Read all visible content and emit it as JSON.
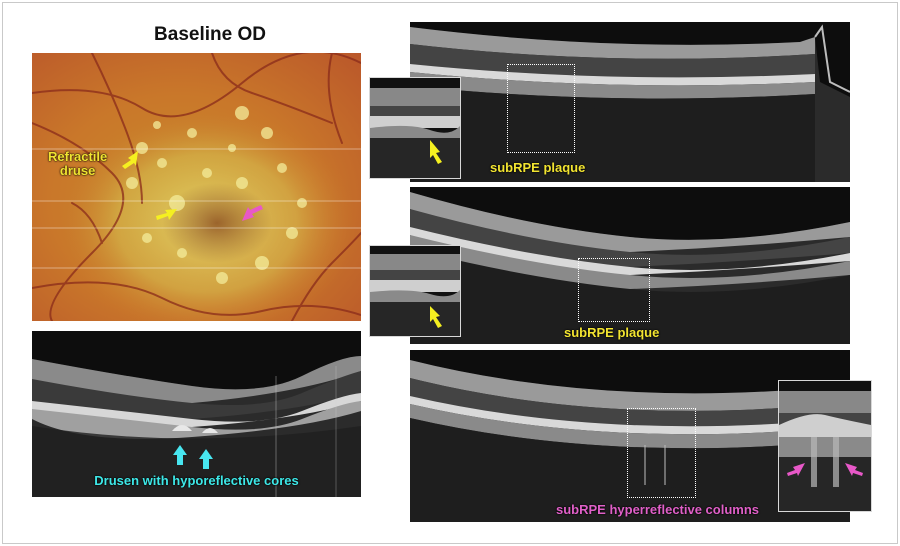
{
  "figure": {
    "title": "Baseline OD",
    "fundus_labels": {
      "refractile_druse": "Refractile\ndruse"
    },
    "bottom_left_label": "Drusen with hyporeflective cores",
    "top_right_label": "subRPE plaque",
    "middle_right_label": "subRPE plaque",
    "bottom_right_label": "subRPE hyperreflective columns"
  },
  "colors": {
    "yellow_label": "#f2e431",
    "cyan_label": "#3ee8e8",
    "magenta_label": "#e060c8",
    "yellow_arrow": "#f5f020",
    "cyan_arrow": "#48e6f0",
    "magenta_arrow": "#e858c8"
  }
}
